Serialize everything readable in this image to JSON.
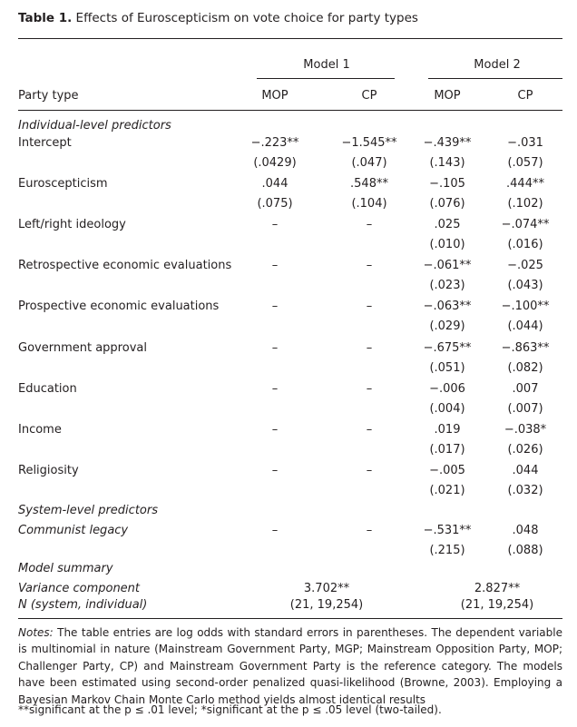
{
  "caption": {
    "label": "Table 1.",
    "text": "Effects of Euroscepticism on vote choice for party types"
  },
  "header": {
    "model1": "Model 1",
    "model2": "Model 2",
    "party_type": "Party type",
    "cols": [
      "MOP",
      "CP",
      "MOP",
      "CP"
    ]
  },
  "sections": {
    "individual": "Individual-level predictors",
    "system": "System-level predictors",
    "summary": "Model summary"
  },
  "rows": [
    {
      "label": "Intercept",
      "coef": [
        "−.223**",
        "−1.545**",
        "−.439**",
        "−.031"
      ],
      "se": [
        "(.0429)",
        "(.047)",
        "(.143)",
        "(.057)"
      ]
    },
    {
      "label": "Euroscepticism",
      "coef": [
        ".044",
        ".548**",
        "−.105",
        ".444**"
      ],
      "se": [
        "(.075)",
        "(.104)",
        "(.076)",
        "(.102)"
      ]
    },
    {
      "label": "Left/right ideology",
      "coef": [
        "–",
        "–",
        ".025",
        "−.074**"
      ],
      "se": [
        "",
        "",
        "(.010)",
        "(.016)"
      ]
    },
    {
      "label": "Retrospective economic evaluations",
      "coef": [
        "–",
        "–",
        "−.061**",
        "−.025"
      ],
      "se": [
        "",
        "",
        "(.023)",
        "(.043)"
      ]
    },
    {
      "label": "Prospective economic evaluations",
      "coef": [
        "–",
        "–",
        "−.063**",
        "−.100**"
      ],
      "se": [
        "",
        "",
        "(.029)",
        "(.044)"
      ]
    },
    {
      "label": "Government approval",
      "coef": [
        "–",
        "–",
        "−.675**",
        "−.863**"
      ],
      "se": [
        "",
        "",
        "(.051)",
        "(.082)"
      ]
    },
    {
      "label": "Education",
      "coef": [
        "–",
        "–",
        "−.006",
        ".007"
      ],
      "se": [
        "",
        "",
        "(.004)",
        "(.007)"
      ]
    },
    {
      "label": "Income",
      "coef": [
        "–",
        "–",
        ".019",
        "−.038*"
      ],
      "se": [
        "",
        "",
        "(.017)",
        "(.026)"
      ]
    },
    {
      "label": "Religiosity",
      "coef": [
        "–",
        "–",
        "−.005",
        ".044"
      ],
      "se": [
        "",
        "",
        "(.021)",
        "(.032)"
      ]
    }
  ],
  "system_row": {
    "label": "Communist legacy",
    "coef": [
      "–",
      "–",
      "−.531**",
      ".048"
    ],
    "se": [
      "",
      "",
      "(.215)",
      "(.088)"
    ]
  },
  "summary_rows": [
    {
      "label": "Variance component",
      "m1": "3.702**",
      "m2": "2.827**"
    },
    {
      "label": "N (system, individual)",
      "m1": "(21, 19,254)",
      "m2": "(21, 19,254)"
    }
  ],
  "notes": {
    "label": "Notes:",
    "text": "The table entries are log odds with standard errors in parentheses. The dependent variable is multinomial in nature (Mainstream Government Party, MGP; Mainstream Opposition Party, MOP; Challenger Party, CP) and Mainstream Government Party is the reference category. The models have been estimated using second-order penalized quasi-likelihood (Browne, 2003). Employing a Bayesian Markov Chain Monte Carlo method yields almost identical results",
    "significance": "**significant at the p ≤ .01 level; *significant at the p ≤ .05 level (two-tailed)."
  }
}
